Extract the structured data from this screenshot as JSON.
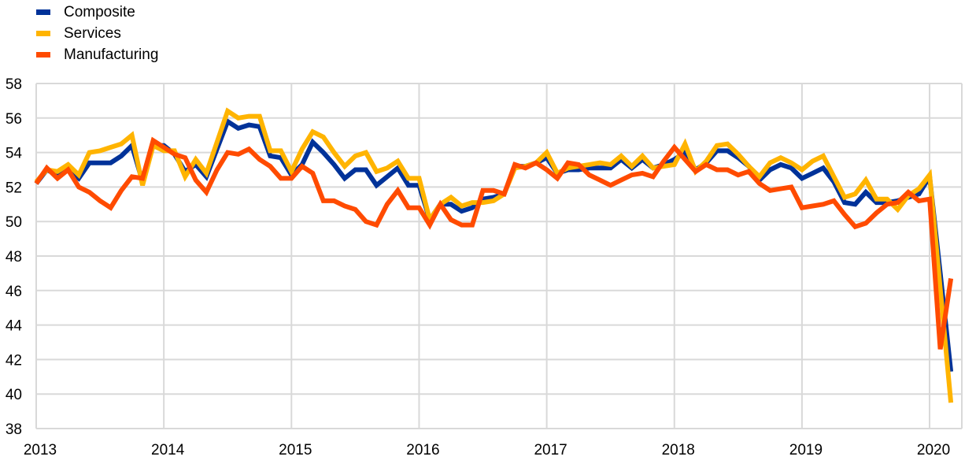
{
  "chart_data": {
    "type": "line",
    "title": "",
    "xlabel": "",
    "ylabel": "",
    "ylim": [
      38,
      58
    ],
    "yticks": [
      "38",
      "40",
      "42",
      "44",
      "46",
      "48",
      "50",
      "52",
      "54",
      "56",
      "58"
    ],
    "xticks": [
      "2013",
      "2014",
      "2015",
      "2016",
      "2017",
      "2018",
      "2019",
      "2020"
    ],
    "x_start": "2013-01",
    "frequency": "monthly",
    "grid": true,
    "legend_position": "top-left",
    "series": [
      {
        "name": "Composite",
        "color": "#003299",
        "values": [
          52.2,
          53.0,
          52.7,
          53.0,
          52.5,
          53.4,
          53.4,
          53.4,
          53.8,
          54.4,
          52.3,
          54.4,
          54.4,
          53.9,
          52.9,
          53.3,
          52.6,
          54.2,
          55.8,
          55.4,
          55.6,
          55.5,
          53.8,
          53.7,
          52.7,
          53.3,
          54.6,
          54.0,
          53.3,
          52.5,
          53.0,
          53.0,
          52.1,
          52.6,
          53.1,
          52.1,
          52.1,
          50.1,
          51.0,
          51.0,
          50.6,
          50.8,
          51.3,
          51.4,
          51.6,
          53.2,
          53.2,
          53.4,
          53.7,
          52.8,
          53.0,
          53.0,
          53.1,
          53.1,
          53.1,
          53.6,
          53.1,
          53.6,
          53.1,
          53.3,
          53.6,
          54.0,
          53.0,
          53.4,
          54.1,
          54.1,
          53.7,
          53.2,
          52.4,
          53.0,
          53.3,
          53.1,
          52.5,
          52.8,
          53.1,
          52.3,
          51.1,
          51.0,
          51.7,
          51.1,
          51.1,
          51.2,
          51.4,
          51.6,
          52.6,
          47.0,
          41.3
        ]
      },
      {
        "name": "Services",
        "color": "#FFB400",
        "values": [
          52.3,
          53.0,
          52.9,
          53.3,
          52.7,
          54.0,
          54.1,
          54.3,
          54.5,
          55.0,
          52.1,
          54.4,
          54.1,
          54.1,
          52.6,
          53.6,
          52.8,
          54.6,
          56.4,
          56.0,
          56.1,
          56.1,
          54.1,
          54.1,
          52.9,
          54.2,
          55.2,
          54.9,
          54.0,
          53.2,
          53.8,
          54.0,
          52.9,
          53.1,
          53.5,
          52.5,
          52.5,
          50.1,
          51.0,
          51.4,
          50.9,
          51.1,
          51.1,
          51.2,
          51.6,
          53.1,
          53.2,
          53.4,
          54.0,
          52.8,
          53.1,
          53.2,
          53.3,
          53.4,
          53.3,
          53.8,
          53.2,
          53.8,
          53.1,
          53.2,
          53.3,
          54.5,
          52.9,
          53.5,
          54.4,
          54.5,
          53.9,
          53.2,
          52.6,
          53.4,
          53.7,
          53.4,
          53.0,
          53.5,
          53.8,
          52.6,
          51.4,
          51.6,
          52.4,
          51.3,
          51.3,
          50.7,
          51.5,
          51.9,
          52.7,
          46.1,
          39.5
        ]
      },
      {
        "name": "Manufacturing",
        "color": "#FF4B00",
        "values": [
          52.2,
          53.1,
          52.5,
          53.0,
          52.0,
          51.7,
          51.2,
          50.8,
          51.8,
          52.6,
          52.5,
          54.7,
          54.3,
          53.9,
          53.7,
          52.4,
          51.7,
          53.0,
          54.0,
          53.9,
          54.2,
          53.6,
          53.2,
          52.5,
          52.5,
          53.2,
          52.8,
          51.2,
          51.2,
          50.9,
          50.7,
          50.0,
          49.8,
          51.0,
          51.8,
          50.8,
          50.8,
          49.8,
          51.0,
          50.1,
          49.8,
          49.8,
          51.8,
          51.8,
          51.6,
          53.3,
          53.1,
          53.4,
          53.0,
          52.5,
          53.4,
          53.3,
          52.7,
          52.4,
          52.1,
          52.4,
          52.7,
          52.8,
          52.6,
          53.5,
          54.3,
          53.6,
          52.9,
          53.3,
          53.0,
          53.0,
          52.7,
          52.9,
          52.2,
          51.8,
          51.9,
          52.0,
          50.8,
          50.9,
          51.0,
          51.2,
          50.4,
          49.7,
          49.9,
          50.5,
          51.0,
          51.1,
          51.7,
          51.2,
          51.3,
          42.6,
          46.7
        ]
      }
    ]
  }
}
